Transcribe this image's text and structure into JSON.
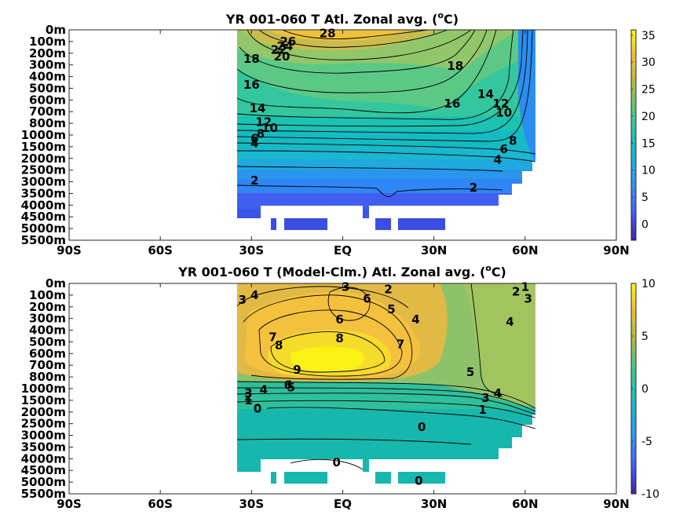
{
  "chart_data": [
    {
      "type": "heatmap",
      "title": "YR 001-060 T Atl. Zonal avg. (oC)",
      "title_parts": {
        "main": "YR 001-060 T Atl. Zonal avg. (",
        "sup": "o",
        "end": "C)"
      },
      "x_ticks": [
        "90S",
        "60S",
        "30S",
        "EQ",
        "30N",
        "60N",
        "90N"
      ],
      "y_ticks": [
        "0m",
        "100m",
        "200m",
        "300m",
        "400m",
        "500m",
        "600m",
        "700m",
        "800m",
        "1000m",
        "1500m",
        "2000m",
        "2500m",
        "3000m",
        "3500m",
        "4000m",
        "4500m",
        "5000m",
        "5500m"
      ],
      "colorbar": {
        "min": -3,
        "max": 36,
        "ticks": [
          "35",
          "30",
          "25",
          "20",
          "15",
          "10",
          "5",
          "0"
        ],
        "tick_values": [
          35,
          30,
          25,
          20,
          15,
          10,
          5,
          0
        ]
      },
      "data_extent": {
        "lat": [
          -34,
          63
        ]
      },
      "contour_labels": [
        {
          "text": "28",
          "lat": -5,
          "depth": 0.3
        },
        {
          "text": "26",
          "lat": -18,
          "depth": 1.0
        },
        {
          "text": "24",
          "lat": -19,
          "depth": 1.4
        },
        {
          "text": "22",
          "lat": -21,
          "depth": 1.7
        },
        {
          "text": "20",
          "lat": -20,
          "depth": 2.3
        },
        {
          "text": "18",
          "lat": -30,
          "depth": 2.5
        },
        {
          "text": "18",
          "lat": 37,
          "depth": 3.1
        },
        {
          "text": "16",
          "lat": -30,
          "depth": 4.7
        },
        {
          "text": "16",
          "lat": 36,
          "depth": 6.3
        },
        {
          "text": "14",
          "lat": -28,
          "depth": 6.7
        },
        {
          "text": "14",
          "lat": 47,
          "depth": 5.5
        },
        {
          "text": "12",
          "lat": -26,
          "depth": 7.9
        },
        {
          "text": "12",
          "lat": 52,
          "depth": 6.3
        },
        {
          "text": "10",
          "lat": -24,
          "depth": 8.4
        },
        {
          "text": "10",
          "lat": 53,
          "depth": 7.1
        },
        {
          "text": "8",
          "lat": -27,
          "depth": 8.9
        },
        {
          "text": "8",
          "lat": 56,
          "depth": 9.5
        },
        {
          "text": "6",
          "lat": -29,
          "depth": 9.3
        },
        {
          "text": "6",
          "lat": 53,
          "depth": 10.2
        },
        {
          "text": "4",
          "lat": -29,
          "depth": 9.7
        },
        {
          "text": "4",
          "lat": 51,
          "depth": 11.1
        },
        {
          "text": "2",
          "lat": -29,
          "depth": 12.9
        },
        {
          "text": "2",
          "lat": 43,
          "depth": 13.5
        }
      ]
    },
    {
      "type": "heatmap",
      "title": "YR 001-060 T (Model-Clm.) Atl. Zonal avg. (oC)",
      "title_parts": {
        "main": "YR 001-060 T (Model-Clm.) Atl. Zonal avg. (",
        "sup": "o",
        "end": "C)"
      },
      "x_ticks": [
        "90S",
        "60S",
        "30S",
        "EQ",
        "30N",
        "60N",
        "90N"
      ],
      "y_ticks": [
        "0m",
        "100m",
        "200m",
        "300m",
        "400m",
        "500m",
        "600m",
        "700m",
        "800m",
        "1000m",
        "1500m",
        "2000m",
        "2500m",
        "3000m",
        "3500m",
        "4000m",
        "4500m",
        "5000m",
        "5500m"
      ],
      "colorbar": {
        "min": -10,
        "max": 10,
        "ticks": [
          "10",
          "5",
          "0",
          "-5",
          "-10"
        ],
        "tick_values": [
          10,
          5,
          0,
          -5,
          -10
        ]
      },
      "data_extent": {
        "lat": [
          -34,
          63
        ]
      },
      "contour_labels": [
        {
          "text": "3",
          "lat": -33,
          "depth": 1.4
        },
        {
          "text": "4",
          "lat": -29,
          "depth": 1.0
        },
        {
          "text": "3",
          "lat": 1,
          "depth": 0.3
        },
        {
          "text": "2",
          "lat": 15,
          "depth": 0.5
        },
        {
          "text": "6",
          "lat": 8,
          "depth": 1.3
        },
        {
          "text": "5",
          "lat": 16,
          "depth": 2.2
        },
        {
          "text": "4",
          "lat": 24,
          "depth": 3.1
        },
        {
          "text": "6",
          "lat": -1,
          "depth": 3.1
        },
        {
          "text": "7",
          "lat": -23,
          "depth": 4.6
        },
        {
          "text": "8",
          "lat": -21,
          "depth": 5.3
        },
        {
          "text": "8",
          "lat": -1,
          "depth": 4.7
        },
        {
          "text": "7",
          "lat": 19,
          "depth": 5.2
        },
        {
          "text": "9",
          "lat": -15,
          "depth": 7.4
        },
        {
          "text": "6",
          "lat": -18,
          "depth": 8.7
        },
        {
          "text": "5",
          "lat": -17,
          "depth": 8.9
        },
        {
          "text": "4",
          "lat": -26,
          "depth": 9.1
        },
        {
          "text": "3",
          "lat": -31,
          "depth": 9.4
        },
        {
          "text": "2",
          "lat": -31,
          "depth": 9.7
        },
        {
          "text": "1",
          "lat": -31,
          "depth": 10.0
        },
        {
          "text": "0",
          "lat": -28,
          "depth": 10.7
        },
        {
          "text": "5",
          "lat": 42,
          "depth": 7.6
        },
        {
          "text": "1",
          "lat": 60,
          "depth": 0.3
        },
        {
          "text": "2",
          "lat": 57,
          "depth": 0.7
        },
        {
          "text": "3",
          "lat": 61,
          "depth": 1.3
        },
        {
          "text": "4",
          "lat": 55,
          "depth": 3.3
        },
        {
          "text": "4",
          "lat": 51,
          "depth": 9.4
        },
        {
          "text": "3",
          "lat": 47,
          "depth": 9.8
        },
        {
          "text": "1",
          "lat": 46,
          "depth": 10.8
        },
        {
          "text": "0",
          "lat": 26,
          "depth": 12.3
        },
        {
          "text": "0",
          "lat": -2,
          "depth": 15.3
        },
        {
          "text": "0",
          "lat": 25,
          "depth": 16.9
        }
      ]
    }
  ]
}
